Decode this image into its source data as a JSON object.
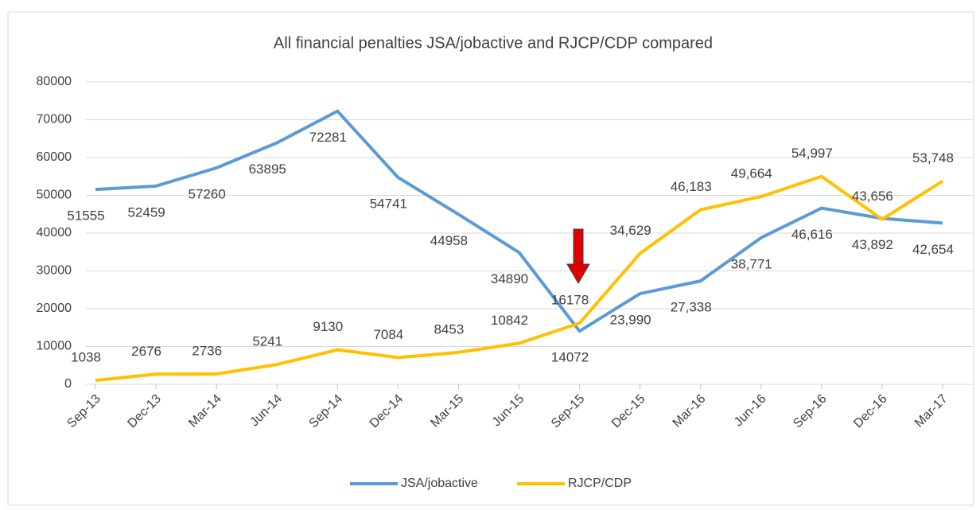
{
  "chart_data": {
    "type": "line",
    "title": "All financial penalties JSA/jobactive and RJCP/CDP compared",
    "categories": [
      "Sep-13",
      "Dec-13",
      "Mar-14",
      "Jun-14",
      "Sep-14",
      "Dec-14",
      "Mar-15",
      "Jun-15",
      "Sep-15",
      "Dec-15",
      "Mar-16",
      "Jun-16",
      "Sep-16",
      "Dec-16",
      "Mar-17"
    ],
    "series": [
      {
        "name": "JSA/jobactive",
        "color": "#5b9bd5",
        "values": [
          51555,
          52459,
          57260,
          63895,
          72281,
          54741,
          44958,
          34890,
          14072,
          23990,
          27338,
          38771,
          46616,
          43892,
          42654
        ],
        "value_labels": [
          "51555",
          "52459",
          "57260",
          "63895",
          "72281",
          "54741",
          "44958",
          "34890",
          "14072",
          "23,990",
          "27,338",
          "38,771",
          "46,616",
          "43,892",
          "42,654"
        ]
      },
      {
        "name": "RJCP/CDP",
        "color": "#ffc000",
        "values": [
          1038,
          2676,
          2736,
          5241,
          9130,
          7084,
          8453,
          10842,
          16178,
          34629,
          46183,
          49664,
          54997,
          43656,
          53748
        ],
        "value_labels": [
          "1038",
          "2676",
          "2736",
          "5241",
          "9130",
          "7084",
          "8453",
          "10842",
          "16178",
          "34,629",
          "46,183",
          "49,664",
          "54,997",
          "43,656",
          "53,748"
        ]
      }
    ],
    "ylim": [
      0,
      80000
    ],
    "yticks": [
      0,
      10000,
      20000,
      30000,
      40000,
      50000,
      60000,
      70000,
      80000
    ],
    "grid": true,
    "legend": "bottom"
  }
}
